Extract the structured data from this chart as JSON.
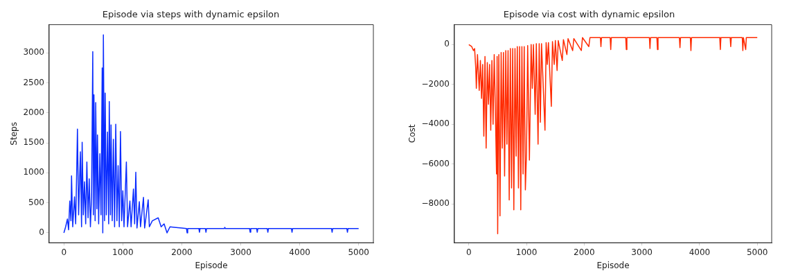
{
  "chart_data": [
    {
      "type": "line",
      "title": "Episode via steps with dynamic epsilon",
      "xlabel": "Episode",
      "ylabel": "Steps",
      "color": "#0a2cff",
      "marker": "none",
      "grid": false,
      "legend": false,
      "xlim": [
        -250,
        5250
      ],
      "xticks": [
        0,
        1000,
        2000,
        3000,
        4000,
        5000
      ],
      "ylim": [
        -165,
        3470
      ],
      "yticks": [
        0,
        500,
        1000,
        1500,
        2000,
        2500,
        3000
      ],
      "x": [
        0,
        30,
        60,
        80,
        100,
        120,
        130,
        150,
        180,
        200,
        220,
        230,
        250,
        280,
        300,
        310,
        330,
        350,
        370,
        390,
        410,
        430,
        450,
        470,
        490,
        500,
        510,
        530,
        540,
        560,
        570,
        590,
        610,
        630,
        650,
        660,
        670,
        690,
        700,
        720,
        740,
        760,
        770,
        790,
        800,
        820,
        840,
        860,
        880,
        900,
        920,
        940,
        960,
        980,
        1000,
        1020,
        1060,
        1080,
        1120,
        1140,
        1180,
        1200,
        1220,
        1240,
        1280,
        1300,
        1350,
        1370,
        1430,
        1450,
        1500,
        1600,
        1650,
        1700,
        1750,
        1800,
        1900,
        2000,
        2080,
        2090,
        2100,
        2290,
        2300,
        2310,
        2400,
        2410,
        2420,
        2720,
        2730,
        2740,
        3150,
        3160,
        3170,
        3270,
        3280,
        3290,
        3450,
        3460,
        3470,
        3860,
        3870,
        3880,
        4540,
        4550,
        4560,
        4800,
        4810,
        4820,
        5000
      ],
      "values": [
        0,
        100,
        230,
        50,
        530,
        200,
        950,
        100,
        600,
        150,
        1150,
        1730,
        300,
        1350,
        100,
        1510,
        300,
        850,
        150,
        1180,
        250,
        900,
        100,
        600,
        3020,
        300,
        2300,
        200,
        2170,
        400,
        1630,
        150,
        1320,
        300,
        2750,
        0,
        3300,
        200,
        2330,
        300,
        1680,
        150,
        2190,
        300,
        1800,
        200,
        1560,
        100,
        1810,
        200,
        1120,
        100,
        1690,
        200,
        700,
        100,
        1180,
        100,
        530,
        100,
        730,
        150,
        1010,
        80,
        520,
        100,
        590,
        80,
        550,
        100,
        200,
        250,
        100,
        150,
        0,
        100,
        90,
        80,
        70,
        0,
        70,
        70,
        10,
        70,
        70,
        10,
        70,
        70,
        90,
        70,
        70,
        10,
        70,
        70,
        10,
        70,
        70,
        10,
        70,
        70,
        10,
        70,
        70,
        10,
        70,
        70,
        10,
        70,
        70
      ]
    },
    {
      "type": "line",
      "title": "Episode via cost with dynamic epsilon",
      "xlabel": "Episode",
      "ylabel": "Cost",
      "color": "#ff2a00",
      "marker": "none",
      "grid": false,
      "legend": false,
      "xlim": [
        -250,
        5250
      ],
      "xticks": [
        0,
        1000,
        2000,
        3000,
        4000,
        5000
      ],
      "ylim": [
        -9950,
        1000
      ],
      "yticks": [
        {
          "value": -8000,
          "label": "−8000"
        },
        {
          "value": -6000,
          "label": "−6000"
        },
        {
          "value": -4000,
          "label": "−4000"
        },
        {
          "value": -2000,
          "label": "−2000"
        },
        0
      ],
      "x": [
        0,
        50,
        80,
        100,
        120,
        130,
        150,
        180,
        200,
        220,
        240,
        260,
        280,
        300,
        320,
        340,
        360,
        380,
        400,
        420,
        440,
        460,
        480,
        490,
        500,
        520,
        540,
        560,
        580,
        600,
        620,
        640,
        660,
        680,
        700,
        720,
        740,
        760,
        780,
        800,
        820,
        840,
        860,
        880,
        900,
        920,
        940,
        960,
        980,
        1000,
        1020,
        1050,
        1080,
        1100,
        1120,
        1150,
        1170,
        1200,
        1220,
        1240,
        1260,
        1320,
        1340,
        1360,
        1380,
        1430,
        1450,
        1480,
        1500,
        1530,
        1550,
        1620,
        1640,
        1700,
        1720,
        1800,
        1820,
        1950,
        1970,
        2080,
        2100,
        2280,
        2290,
        2300,
        2450,
        2460,
        2470,
        2720,
        2730,
        2740,
        3130,
        3140,
        3150,
        3260,
        3270,
        3280,
        3650,
        3660,
        3670,
        3840,
        3850,
        3860,
        4350,
        4360,
        4370,
        4530,
        4540,
        4550,
        4740,
        4750,
        4760,
        4800,
        4810,
        5000
      ],
      "values": [
        0,
        -100,
        -300,
        -200,
        -1200,
        -2200,
        -500,
        -2300,
        -800,
        -2700,
        -1000,
        -4600,
        -600,
        -5200,
        -900,
        -3000,
        -1000,
        -4300,
        -800,
        -4000,
        -500,
        -3300,
        -6500,
        -600,
        -9500,
        -500,
        -8600,
        -400,
        -5200,
        -400,
        -6600,
        -300,
        -5000,
        -300,
        -7800,
        -200,
        -7200,
        -200,
        -8300,
        -200,
        -5600,
        -100,
        -7200,
        -100,
        -8300,
        -100,
        -6500,
        -100,
        -7300,
        -5400,
        -50,
        -5800,
        0,
        -2200,
        0,
        -3500,
        50,
        -5000,
        50,
        -3900,
        50,
        -4300,
        100,
        -1000,
        100,
        -3100,
        150,
        -1000,
        200,
        -1300,
        200,
        -800,
        250,
        -500,
        300,
        -300,
        300,
        -300,
        350,
        -100,
        350,
        350,
        -100,
        350,
        350,
        -250,
        350,
        350,
        -250,
        350,
        350,
        -200,
        350,
        350,
        -250,
        350,
        350,
        -150,
        350,
        350,
        -300,
        350,
        350,
        -250,
        350,
        350,
        -100,
        350,
        350,
        -300,
        350,
        -250,
        350,
        350
      ]
    }
  ]
}
